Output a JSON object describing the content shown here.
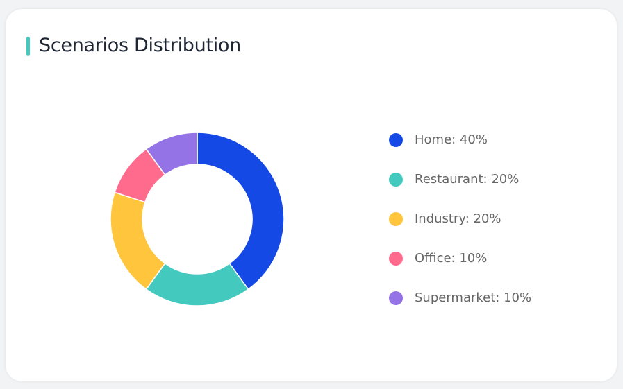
{
  "chart_data": {
    "type": "pie",
    "title": "Scenarios Distribution",
    "donut": true,
    "legend_position": "right",
    "categories": [
      "Home",
      "Restaurant",
      "Industry",
      "Office",
      "Supermarket"
    ],
    "values": [
      40,
      20,
      20,
      10,
      10
    ],
    "legend_labels": [
      "Home: 40%",
      "Restaurant: 20%",
      "Industry: 20%",
      "Office: 10%",
      "Supermarket: 10%"
    ],
    "colors": [
      "#1549e6",
      "#43c9be",
      "#ffc53d",
      "#ff6b8d",
      "#9373e6"
    ]
  },
  "accent_color": "#43c9be"
}
